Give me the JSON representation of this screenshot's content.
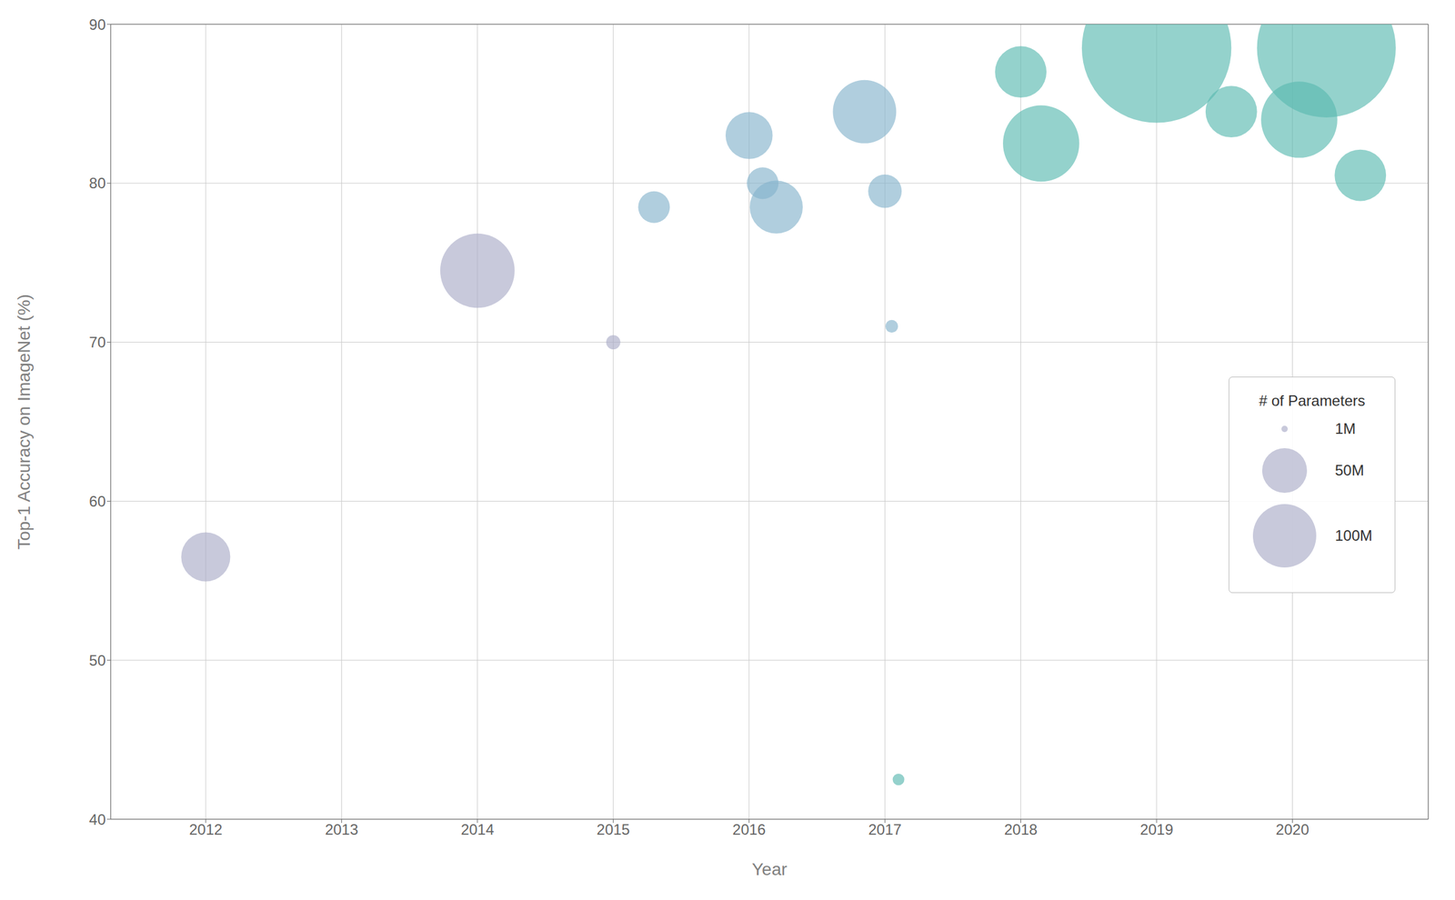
{
  "chart_data": {
    "type": "scatter",
    "xlabel": "Year",
    "ylabel": "Top-1 Accuracy on ImageNet (%)",
    "xlim": [
      2011.3,
      2021.0
    ],
    "ylim": [
      40,
      90
    ],
    "xticks": [
      2012,
      2013,
      2014,
      2015,
      2016,
      2017,
      2018,
      2019,
      2020
    ],
    "yticks": [
      40,
      50,
      60,
      70,
      80,
      90
    ],
    "x": [
      2012.0,
      2014.0,
      2015.0,
      2015.3,
      2016.0,
      2016.1,
      2016.2,
      2016.85,
      2017.0,
      2017.05,
      2017.1,
      2018.0,
      2018.15,
      2019.0,
      2019.55,
      2020.25,
      2020.05,
      2020.5
    ],
    "values": [
      56.5,
      74.5,
      70.0,
      78.5,
      83.0,
      80.0,
      78.5,
      84.5,
      79.5,
      71.0,
      42.5,
      87.0,
      82.5,
      88.5,
      84.5,
      88.5,
      84.0,
      80.5
    ],
    "sizes": [
      60,
      138,
      5,
      25,
      55,
      25,
      70,
      100,
      28,
      4,
      3.4,
      66,
      145,
      557,
      66,
      480,
      145,
      66
    ],
    "colors": [
      "#abacc8",
      "#abacc8",
      "#abacc8",
      "#85b4cc",
      "#85b4cc",
      "#85b4cc",
      "#85b4cc",
      "#85b4cc",
      "#85b4cc",
      "#85b4cc",
      "#5bb8b0",
      "#5abab0",
      "#5abab0",
      "#5abab0",
      "#5abab0",
      "#5abab0",
      "#5abab0",
      "#5abab0"
    ],
    "size_legend": {
      "title": "# of Parameters",
      "entries": [
        {
          "label": "1M",
          "size": 1
        },
        {
          "label": "50M",
          "size": 50
        },
        {
          "label": "100M",
          "size": 100
        }
      ],
      "color": "#abacc8"
    },
    "legend": "right",
    "grid": true
  }
}
